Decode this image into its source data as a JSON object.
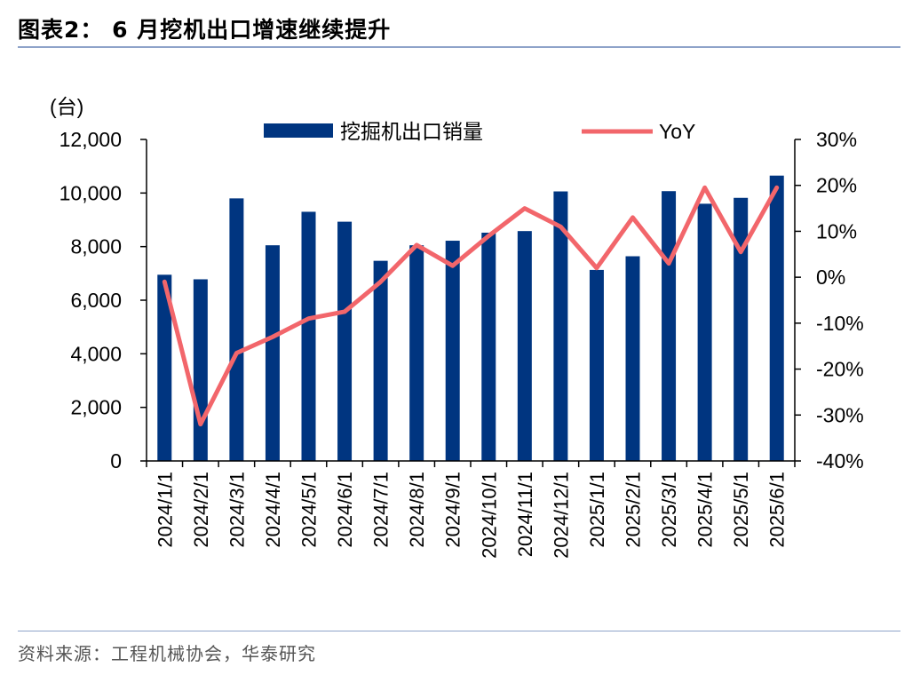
{
  "header": {
    "title": "图表2： 6 月挖机出口增速继续提升"
  },
  "footer": {
    "source": "资料来源：工程机械协会，华泰研究"
  },
  "colors": {
    "bar": "#003580",
    "line": "#f2666b",
    "axis": "#000000",
    "rule": "#8ea3c9"
  },
  "chart_data": {
    "type": "bar",
    "combo": "bar+line (dual axis)",
    "categories": [
      "2024/1/1",
      "2024/2/1",
      "2024/3/1",
      "2024/4/1",
      "2024/5/1",
      "2024/6/1",
      "2024/7/1",
      "2024/8/1",
      "2024/9/1",
      "2024/10/1",
      "2024/11/1",
      "2024/12/1",
      "2025/1/1",
      "2025/2/1",
      "2025/3/1",
      "2025/4/1",
      "2025/5/1",
      "2025/6/1"
    ],
    "series": [
      {
        "name": "挖掘机出口销量",
        "type": "bar",
        "axis": "left",
        "values": [
          6950,
          6780,
          9800,
          8050,
          9300,
          8930,
          7470,
          8050,
          8220,
          8520,
          8580,
          10060,
          7130,
          7640,
          10070,
          9600,
          9820,
          10650
        ]
      },
      {
        "name": "YoY",
        "type": "line",
        "axis": "right",
        "values": [
          -1,
          -32,
          -16.5,
          -13,
          -9,
          -7.5,
          -1,
          7,
          2.5,
          9,
          15,
          11,
          2,
          13,
          3,
          19.5,
          5.5,
          19.5
        ]
      }
    ],
    "y_left": {
      "label": "(台)",
      "min": 0,
      "max": 12000,
      "ticks": [
        0,
        2000,
        4000,
        6000,
        8000,
        10000,
        12000
      ],
      "tick_labels": [
        "0",
        "2,000",
        "4,000",
        "6,000",
        "8,000",
        "10,000",
        "12,000"
      ]
    },
    "y_right": {
      "min": -40,
      "max": 30,
      "ticks": [
        -40,
        -30,
        -20,
        -10,
        0,
        10,
        20,
        30
      ],
      "tick_labels": [
        "-40%",
        "-30%",
        "-20%",
        "-10%",
        "0%",
        "10%",
        "20%",
        "30%"
      ]
    },
    "legend": {
      "placement": "top",
      "entries": [
        "挖掘机出口销量",
        "YoY"
      ]
    },
    "grid": false
  }
}
